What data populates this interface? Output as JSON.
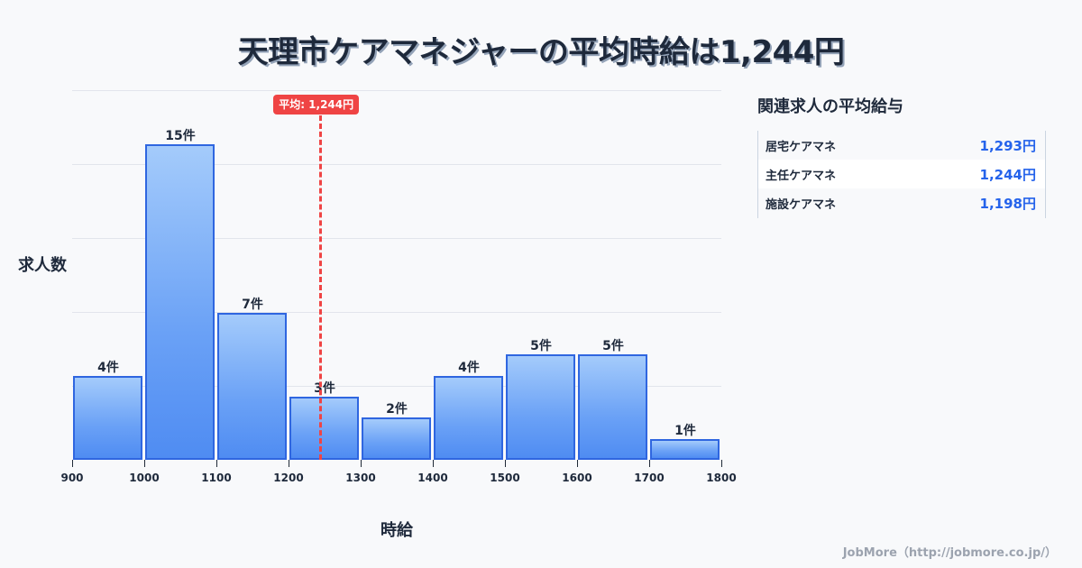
{
  "title": "天理市ケアマネジャーの平均時給は1,244円",
  "chart_data": {
    "type": "bar",
    "title": "天理市ケアマネジャーの平均時給は1,244円",
    "xlabel": "時給",
    "ylabel": "求人数",
    "x_ticks": [
      "900",
      "1000",
      "1100",
      "1200",
      "1300",
      "1400",
      "1500",
      "1600",
      "1700",
      "1800"
    ],
    "categories": [
      "900-1000",
      "1000-1100",
      "1100-1200",
      "1200-1300",
      "1300-1400",
      "1400-1500",
      "1500-1600",
      "1600-1700",
      "1700-1800"
    ],
    "values": [
      4,
      15,
      7,
      3,
      2,
      4,
      5,
      5,
      1
    ],
    "value_labels": [
      "4件",
      "15件",
      "7件",
      "3件",
      "2件",
      "4件",
      "5件",
      "5件",
      "1件"
    ],
    "xlim": [
      900,
      1800
    ],
    "grid": true,
    "annotation": {
      "type": "vline",
      "x": 1244,
      "label": "平均: 1,244円",
      "color": "#ef4444"
    },
    "bar_color": "#60a5fa",
    "bar_border_color": "#2f66e0"
  },
  "side_panel": {
    "title": "関連求人の平均給与",
    "rows": [
      {
        "name": "居宅ケアマネ",
        "value": "1,293円"
      },
      {
        "name": "主任ケアマネ",
        "value": "1,244円"
      },
      {
        "name": "施設ケアマネ",
        "value": "1,198円"
      }
    ]
  },
  "footer": "JobMore（http://jobmore.co.jp/）"
}
